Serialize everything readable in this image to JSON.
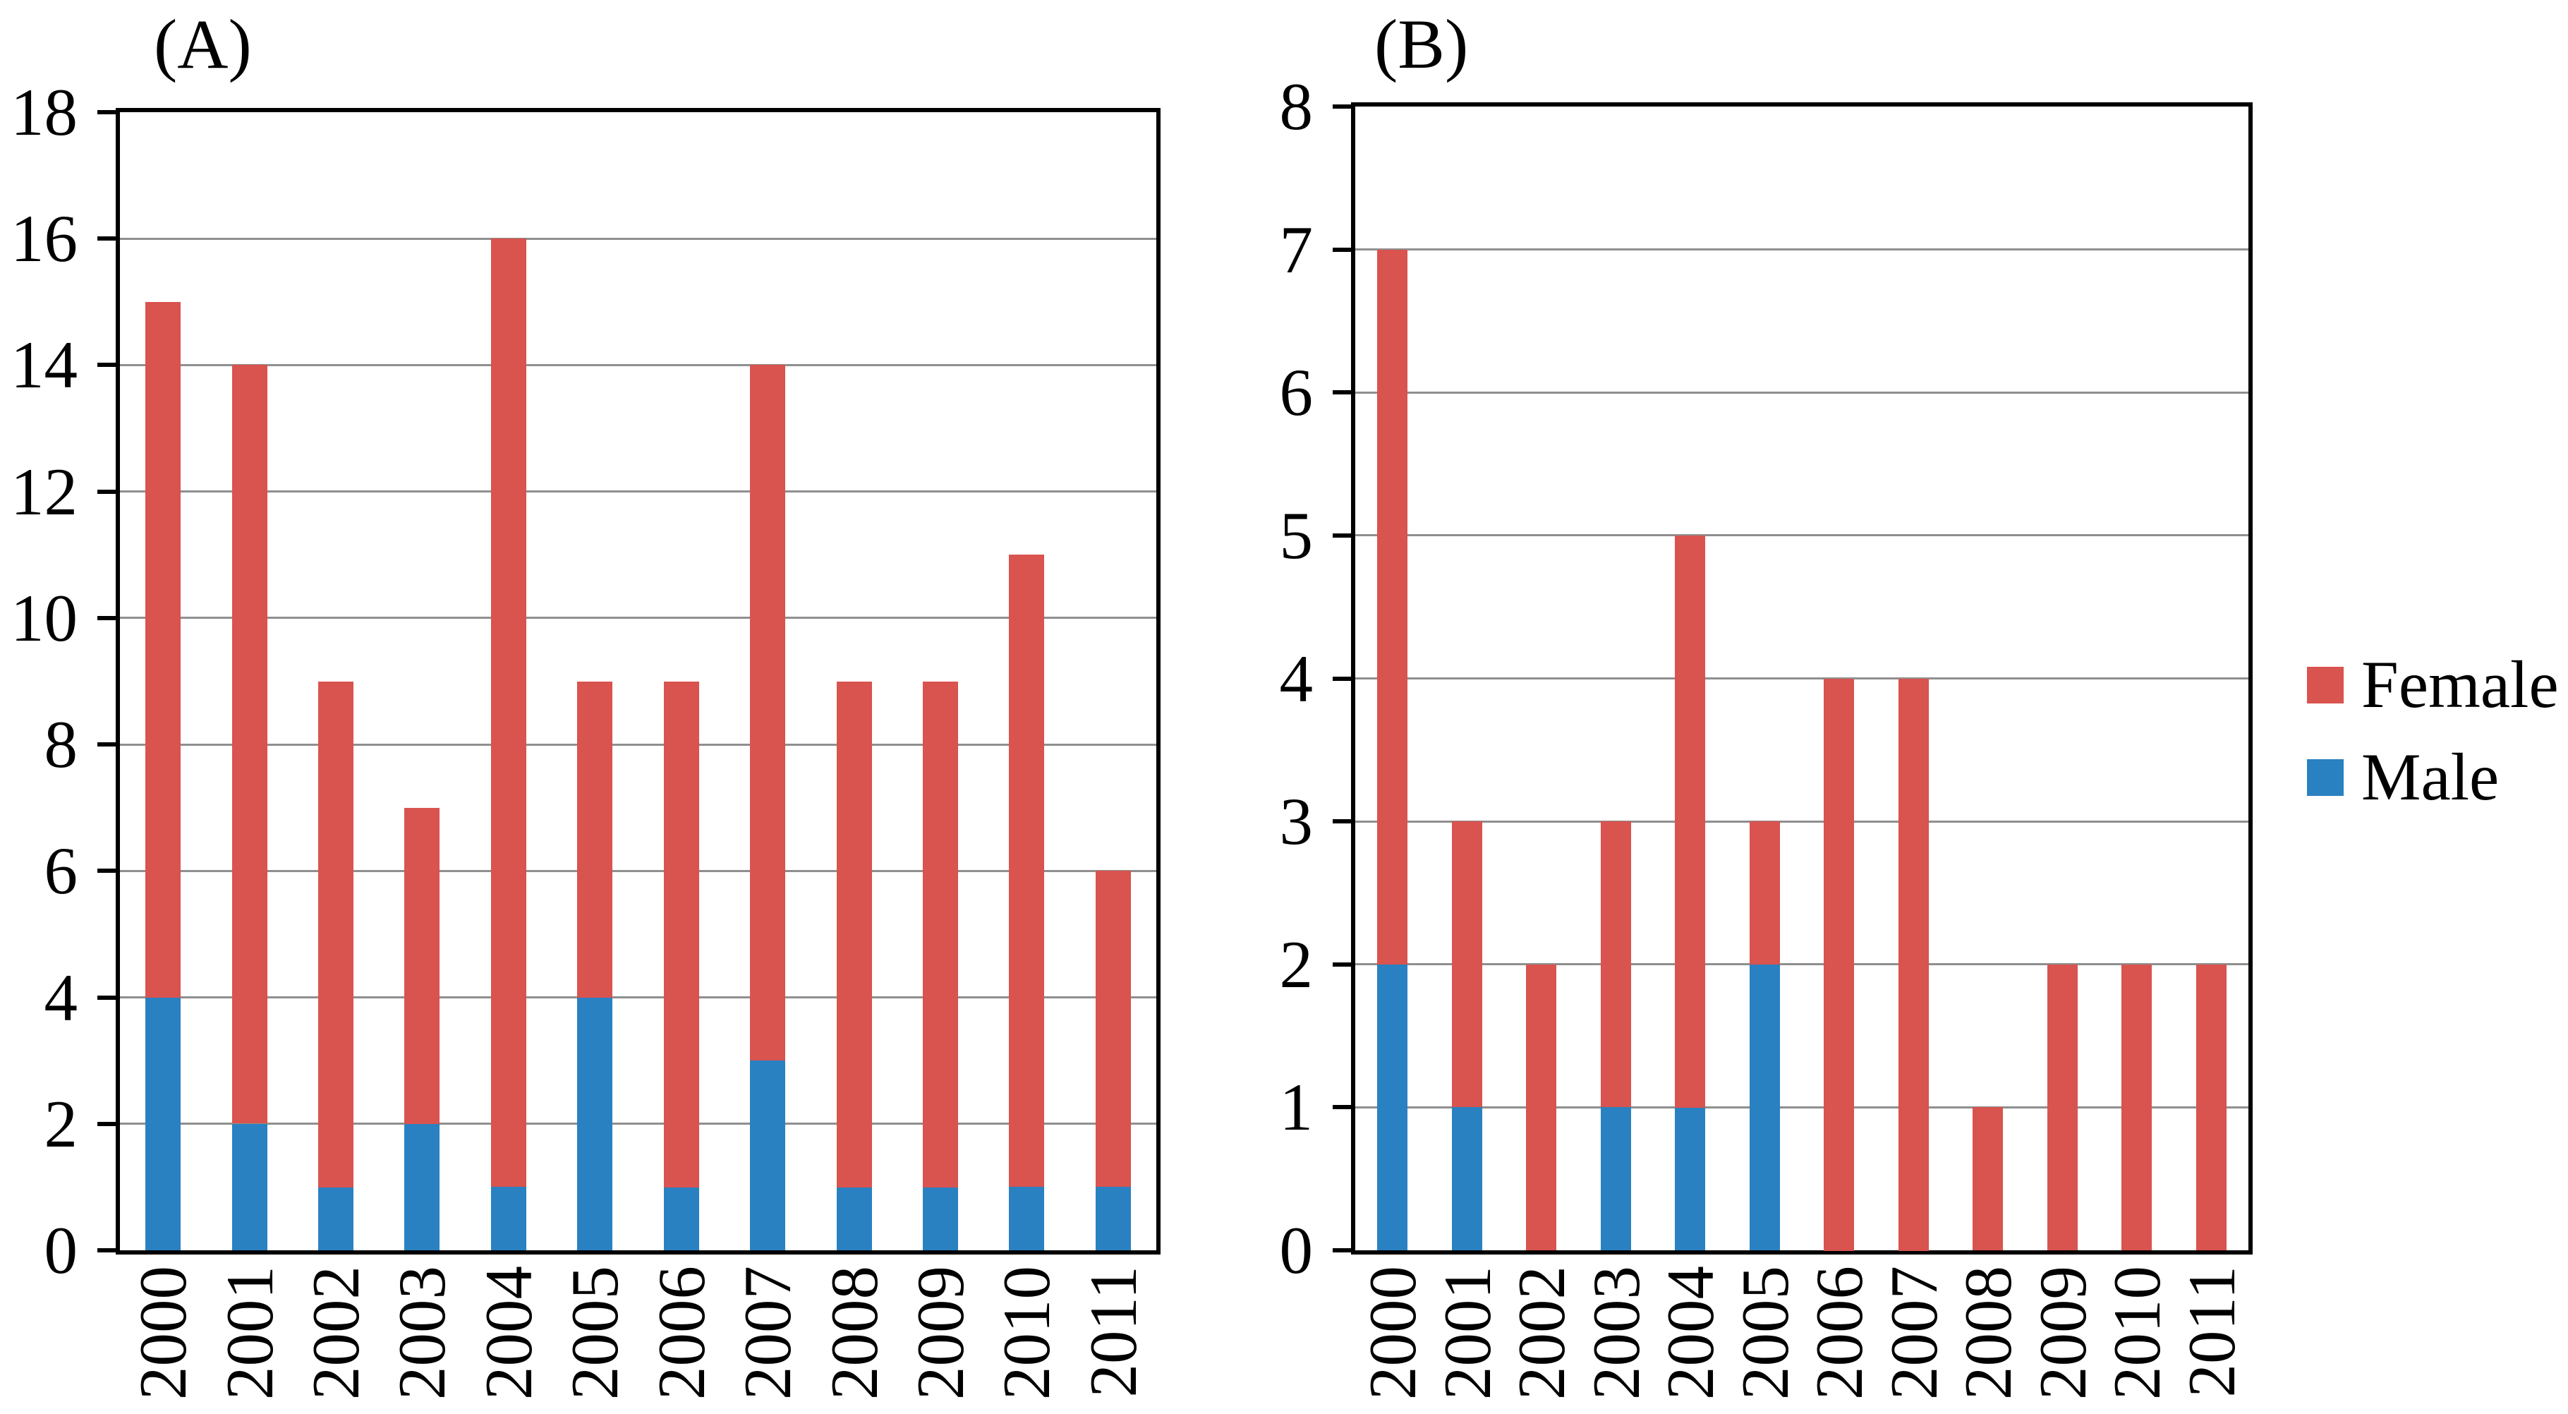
{
  "legend": {
    "position": "right",
    "items": [
      {
        "label": "Female",
        "color": "#d9534f"
      },
      {
        "label": "Male",
        "color": "#2a81c1"
      }
    ]
  },
  "chart_data": [
    {
      "type": "bar",
      "stacked": true,
      "panel_label": "(A)",
      "categories": [
        "2000",
        "2001",
        "2002",
        "2003",
        "2004",
        "2005",
        "2006",
        "2007",
        "2008",
        "2009",
        "2010",
        "2011"
      ],
      "series": [
        {
          "name": "Male",
          "color": "#2a81c1",
          "values": [
            4,
            2,
            1,
            2,
            1,
            4,
            1,
            3,
            1,
            1,
            1,
            1
          ]
        },
        {
          "name": "Female",
          "color": "#d9534f",
          "values": [
            11,
            12,
            8,
            5,
            15,
            5,
            8,
            11,
            8,
            8,
            10,
            5
          ]
        }
      ],
      "totals": [
        15,
        14,
        9,
        7,
        16,
        9,
        9,
        14,
        9,
        9,
        11,
        6
      ],
      "ylim": [
        0,
        18
      ],
      "ytick_step": 2,
      "yticklabels": [
        "0",
        "2",
        "4",
        "6",
        "8",
        "10",
        "12",
        "14",
        "16",
        "18"
      ],
      "grid": true,
      "x_tick_rotation": 90
    },
    {
      "type": "bar",
      "stacked": true,
      "panel_label": "(B)",
      "categories": [
        "2000",
        "2001",
        "2002",
        "2003",
        "2004",
        "2005",
        "2006",
        "2007",
        "2008",
        "2009",
        "2010",
        "2011"
      ],
      "series": [
        {
          "name": "Male",
          "color": "#2a81c1",
          "values": [
            2,
            1,
            0,
            1,
            1,
            2,
            0,
            0,
            0,
            0,
            0,
            0
          ]
        },
        {
          "name": "Female",
          "color": "#d9534f",
          "values": [
            5,
            2,
            2,
            2,
            4,
            1,
            4,
            4,
            1,
            2,
            2,
            2
          ]
        }
      ],
      "totals": [
        7,
        3,
        2,
        3,
        5,
        3,
        4,
        4,
        1,
        2,
        2,
        2
      ],
      "ylim": [
        0,
        8
      ],
      "ytick_step": 1,
      "yticklabels": [
        "0",
        "1",
        "2",
        "3",
        "4",
        "5",
        "6",
        "7",
        "8"
      ],
      "grid": true,
      "x_tick_rotation": 90
    }
  ]
}
